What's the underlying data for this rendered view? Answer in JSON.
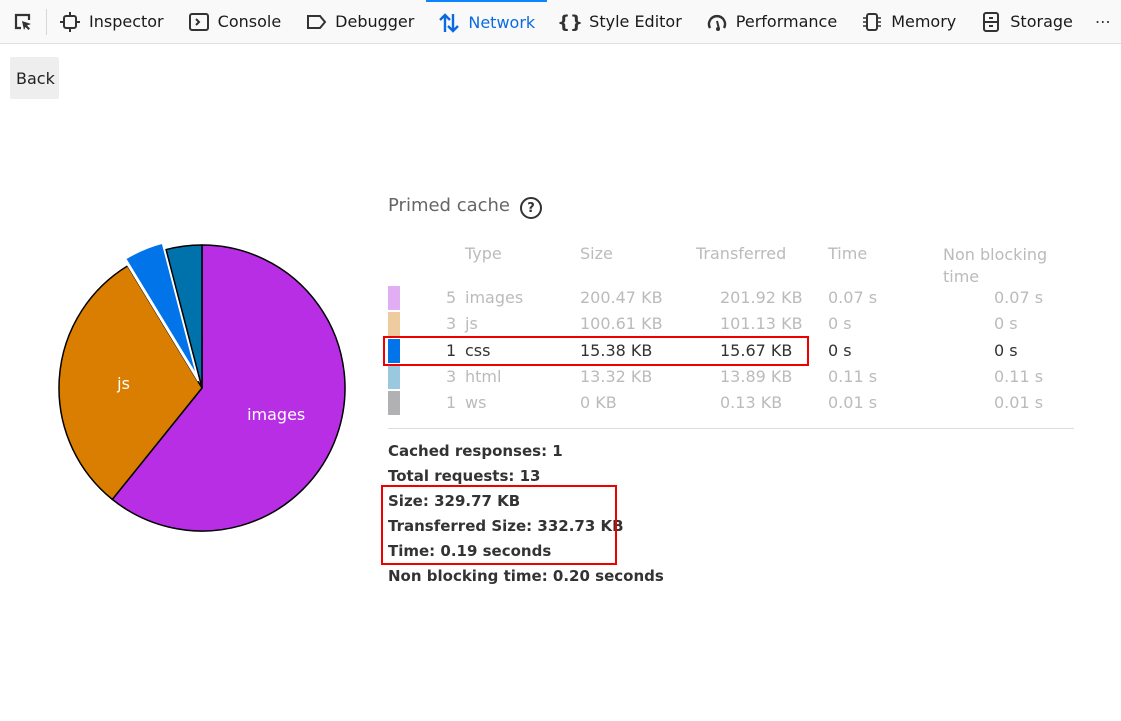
{
  "toolbar": {
    "tabs": [
      {
        "label": "Inspector",
        "icon": "inspector-icon"
      },
      {
        "label": "Console",
        "icon": "console-icon"
      },
      {
        "label": "Debugger",
        "icon": "debugger-icon"
      },
      {
        "label": "Network",
        "icon": "network-icon",
        "active": true
      },
      {
        "label": "Style Editor",
        "icon": "style-editor-icon"
      },
      {
        "label": "Performance",
        "icon": "performance-icon"
      },
      {
        "label": "Memory",
        "icon": "memory-icon"
      },
      {
        "label": "Storage",
        "icon": "storage-icon"
      }
    ]
  },
  "back_label": "Back",
  "section_title": "Primed cache",
  "help_glyph": "?",
  "headers": {
    "type": "Type",
    "size": "Size",
    "transferred": "Transferred",
    "time": "Time",
    "non_blocking": "Non blocking time"
  },
  "rows": [
    {
      "count": "5",
      "type": "images",
      "size": "200.47 KB",
      "transferred": "201.92 KB",
      "time": "0.07 s",
      "non_blocking": "0.07 s",
      "color": "#e2aef3"
    },
    {
      "count": "3",
      "type": "js",
      "size": "100.61 KB",
      "transferred": "101.13 KB",
      "time": "0 s",
      "non_blocking": "0 s",
      "color": "#efcca0"
    },
    {
      "count": "1",
      "type": "css",
      "size": "15.38 KB",
      "transferred": "15.67 KB",
      "time": "0 s",
      "non_blocking": "0 s",
      "color": "#0074e8",
      "highlighted": true
    },
    {
      "count": "3",
      "type": "html",
      "size": "13.32 KB",
      "transferred": "13.89 KB",
      "time": "0.11 s",
      "non_blocking": "0.11 s",
      "color": "#9ac9df"
    },
    {
      "count": "1",
      "type": "ws",
      "size": "0 KB",
      "transferred": "0.13 KB",
      "time": "0.01 s",
      "non_blocking": "0.01 s",
      "color": "#b1b1b3"
    }
  ],
  "summary": {
    "cached": "Cached responses: 1",
    "total": "Total requests: 13",
    "size": "Size: 329.77 KB",
    "transferred": "Transferred Size: 332.73 KB",
    "time": "Time: 0.19 seconds",
    "non_blocking": "Non blocking time: 0.20 seconds"
  },
  "chart_data": {
    "type": "pie",
    "categories": [
      "images",
      "js",
      "css",
      "html",
      "ws"
    ],
    "values": [
      200.47,
      100.61,
      15.38,
      13.32,
      0
    ],
    "colors": [
      "#b82ee5",
      "#d97e00",
      "#0074e8",
      "#0072ab",
      "#b1b1b3"
    ],
    "labels_shown": [
      "images",
      "js"
    ],
    "highlighted": "css"
  }
}
